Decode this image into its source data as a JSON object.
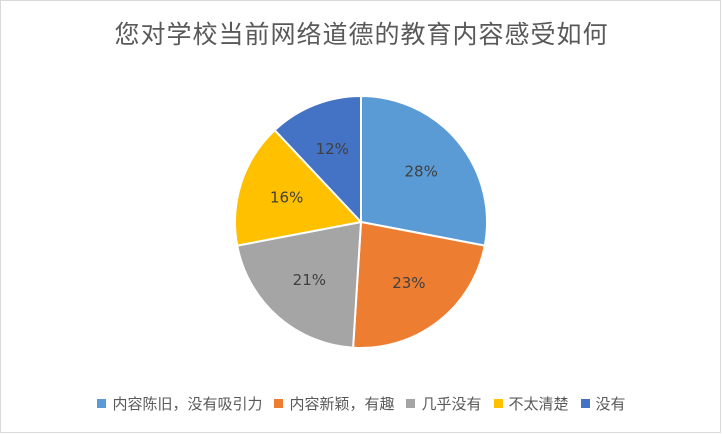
{
  "chart_data": {
    "type": "pie",
    "title": "您对学校当前网络道德的教育内容感受如何",
    "categories": [
      "内容陈旧，没有吸引力",
      "内容新颖，有趣",
      "几乎没有",
      "不太清楚",
      "没有"
    ],
    "values": [
      28,
      23,
      21,
      16,
      12
    ],
    "labels": [
      "28%",
      "23%",
      "21%",
      "16%",
      "12%"
    ],
    "colors": [
      "#5B9BD5",
      "#ED7D31",
      "#A5A5A5",
      "#FFC000",
      "#4472C4"
    ],
    "start_angle_deg": 0,
    "direction": "clockwise",
    "legend": "bottom"
  }
}
